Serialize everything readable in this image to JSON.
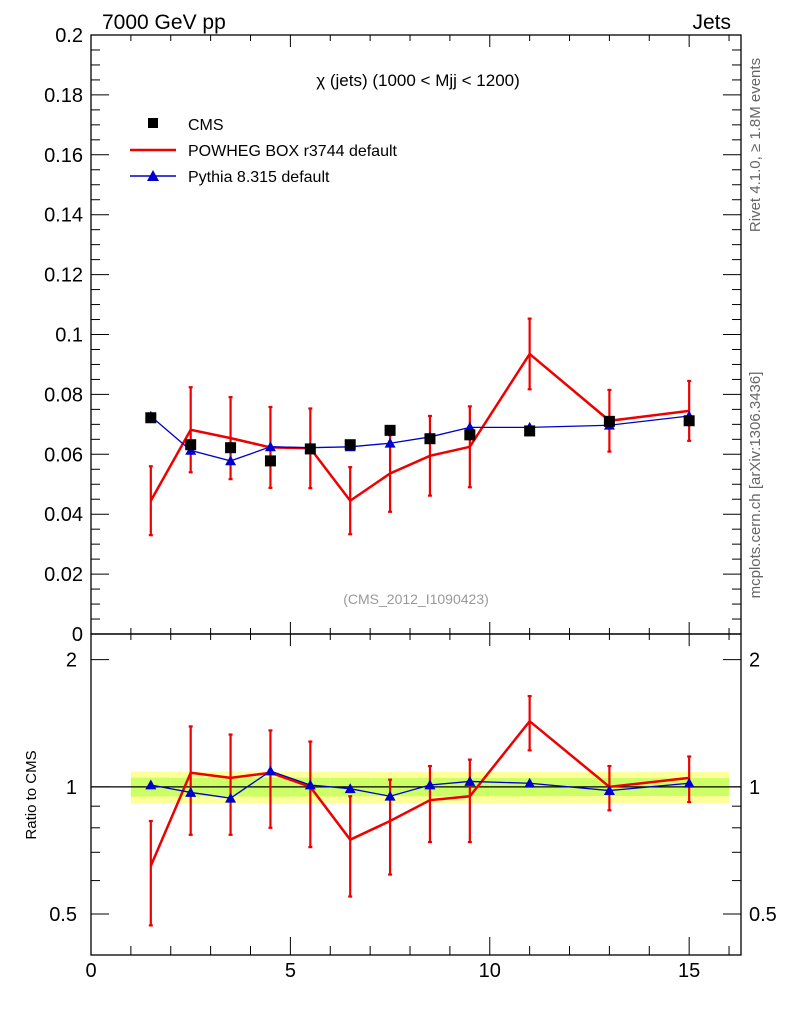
{
  "header": {
    "left": "7000 GeV pp",
    "right": "Jets"
  },
  "side": {
    "rivet": "Rivet 4.1.0, ≥ 1.8M events",
    "mcplots": "mcplots.cern.ch [arXiv:1306.3436]"
  },
  "colors": {
    "data": "#000000",
    "powheg": "#ee0000",
    "pythia": "#0000cc",
    "band_inner": "#ccff66",
    "band_outer": "#ffff99"
  },
  "chart_data": {
    "type": "line",
    "title": "χ (jets) (1000 < Mjj < 1200)",
    "watermark": "(CMS_2012_I1090423)",
    "xlim": [
      0,
      16.3
    ],
    "main": {
      "ylim": [
        0,
        0.2
      ],
      "ytick_values": [
        0,
        0.02,
        0.04,
        0.06,
        0.08,
        0.1,
        0.12,
        0.14,
        0.16,
        0.18,
        0.2
      ],
      "ytick_labels": [
        "0",
        "0.02",
        "0.04",
        "0.06",
        "0.08",
        "0.1",
        "0.12",
        "0.14",
        "0.16",
        "0.18",
        "0.2"
      ]
    },
    "ratio": {
      "ylabel": "Ratio to CMS",
      "ylim": [
        0.4,
        2.3
      ],
      "ytick_values": [
        0.5,
        1,
        2
      ],
      "ytick_labels": [
        "0.5",
        "1",
        "2"
      ]
    },
    "xtick_values": [
      0,
      5,
      10,
      15
    ],
    "xtick_labels": [
      "0",
      "5",
      "10",
      "15"
    ],
    "legend": [
      "CMS",
      "POWHEG BOX r3744 default",
      "Pythia 8.315 default"
    ],
    "bins": [
      [
        1,
        2
      ],
      [
        2,
        3
      ],
      [
        3,
        4
      ],
      [
        4,
        5
      ],
      [
        5,
        6
      ],
      [
        6,
        7
      ],
      [
        7,
        8
      ],
      [
        8,
        9
      ],
      [
        9,
        10
      ],
      [
        10,
        12
      ],
      [
        12,
        14
      ],
      [
        14,
        16
      ]
    ],
    "x": [
      1.5,
      2.5,
      3.5,
      4.5,
      5.5,
      6.5,
      7.5,
      8.5,
      9.5,
      11,
      13,
      15
    ],
    "series": [
      {
        "name": "CMS",
        "values": [
          0.0722,
          0.0632,
          0.0622,
          0.0578,
          0.0618,
          0.0632,
          0.068,
          0.0652,
          0.0665,
          0.0678,
          0.071,
          0.0712
        ],
        "err": [
          0.0012,
          0.001,
          0.001,
          0.001,
          0.001,
          0.001,
          0.001,
          0.001,
          0.001,
          0.001,
          0.001,
          0.001
        ],
        "band_inner": 0.035,
        "band_outer": 0.07
      },
      {
        "name": "POWHEG BOX r3744 default",
        "values": [
          0.0445,
          0.0682,
          0.0654,
          0.0623,
          0.062,
          0.0445,
          0.0536,
          0.0595,
          0.0625,
          0.0935,
          0.0712,
          0.0745
        ],
        "err": [
          0.0115,
          0.0142,
          0.0137,
          0.0135,
          0.0133,
          0.0112,
          0.0128,
          0.0133,
          0.0135,
          0.0118,
          0.0103,
          0.01
        ]
      },
      {
        "name": "Pythia 8.315 default",
        "values": [
          0.0727,
          0.0613,
          0.0578,
          0.0625,
          0.0622,
          0.0625,
          0.0637,
          0.0658,
          0.069,
          0.069,
          0.0697,
          0.0728
        ],
        "err": [
          0.001,
          0.001,
          0.001,
          0.001,
          0.001,
          0.001,
          0.001,
          0.001,
          0.001,
          0.001,
          0.001,
          0.001
        ]
      }
    ],
    "ratio_values": {
      "powheg": [
        0.65,
        1.08,
        1.05,
        1.08,
        1.0,
        0.75,
        0.83,
        0.93,
        0.95,
        1.43,
        1.0,
        1.05
      ],
      "powheg_err": [
        0.18,
        0.31,
        0.28,
        0.28,
        0.28,
        0.2,
        0.21,
        0.19,
        0.21,
        0.21,
        0.12,
        0.13
      ],
      "pythia": [
        1.01,
        0.97,
        0.94,
        1.09,
        1.01,
        0.99,
        0.95,
        1.01,
        1.03,
        1.02,
        0.98,
        1.02
      ]
    }
  }
}
